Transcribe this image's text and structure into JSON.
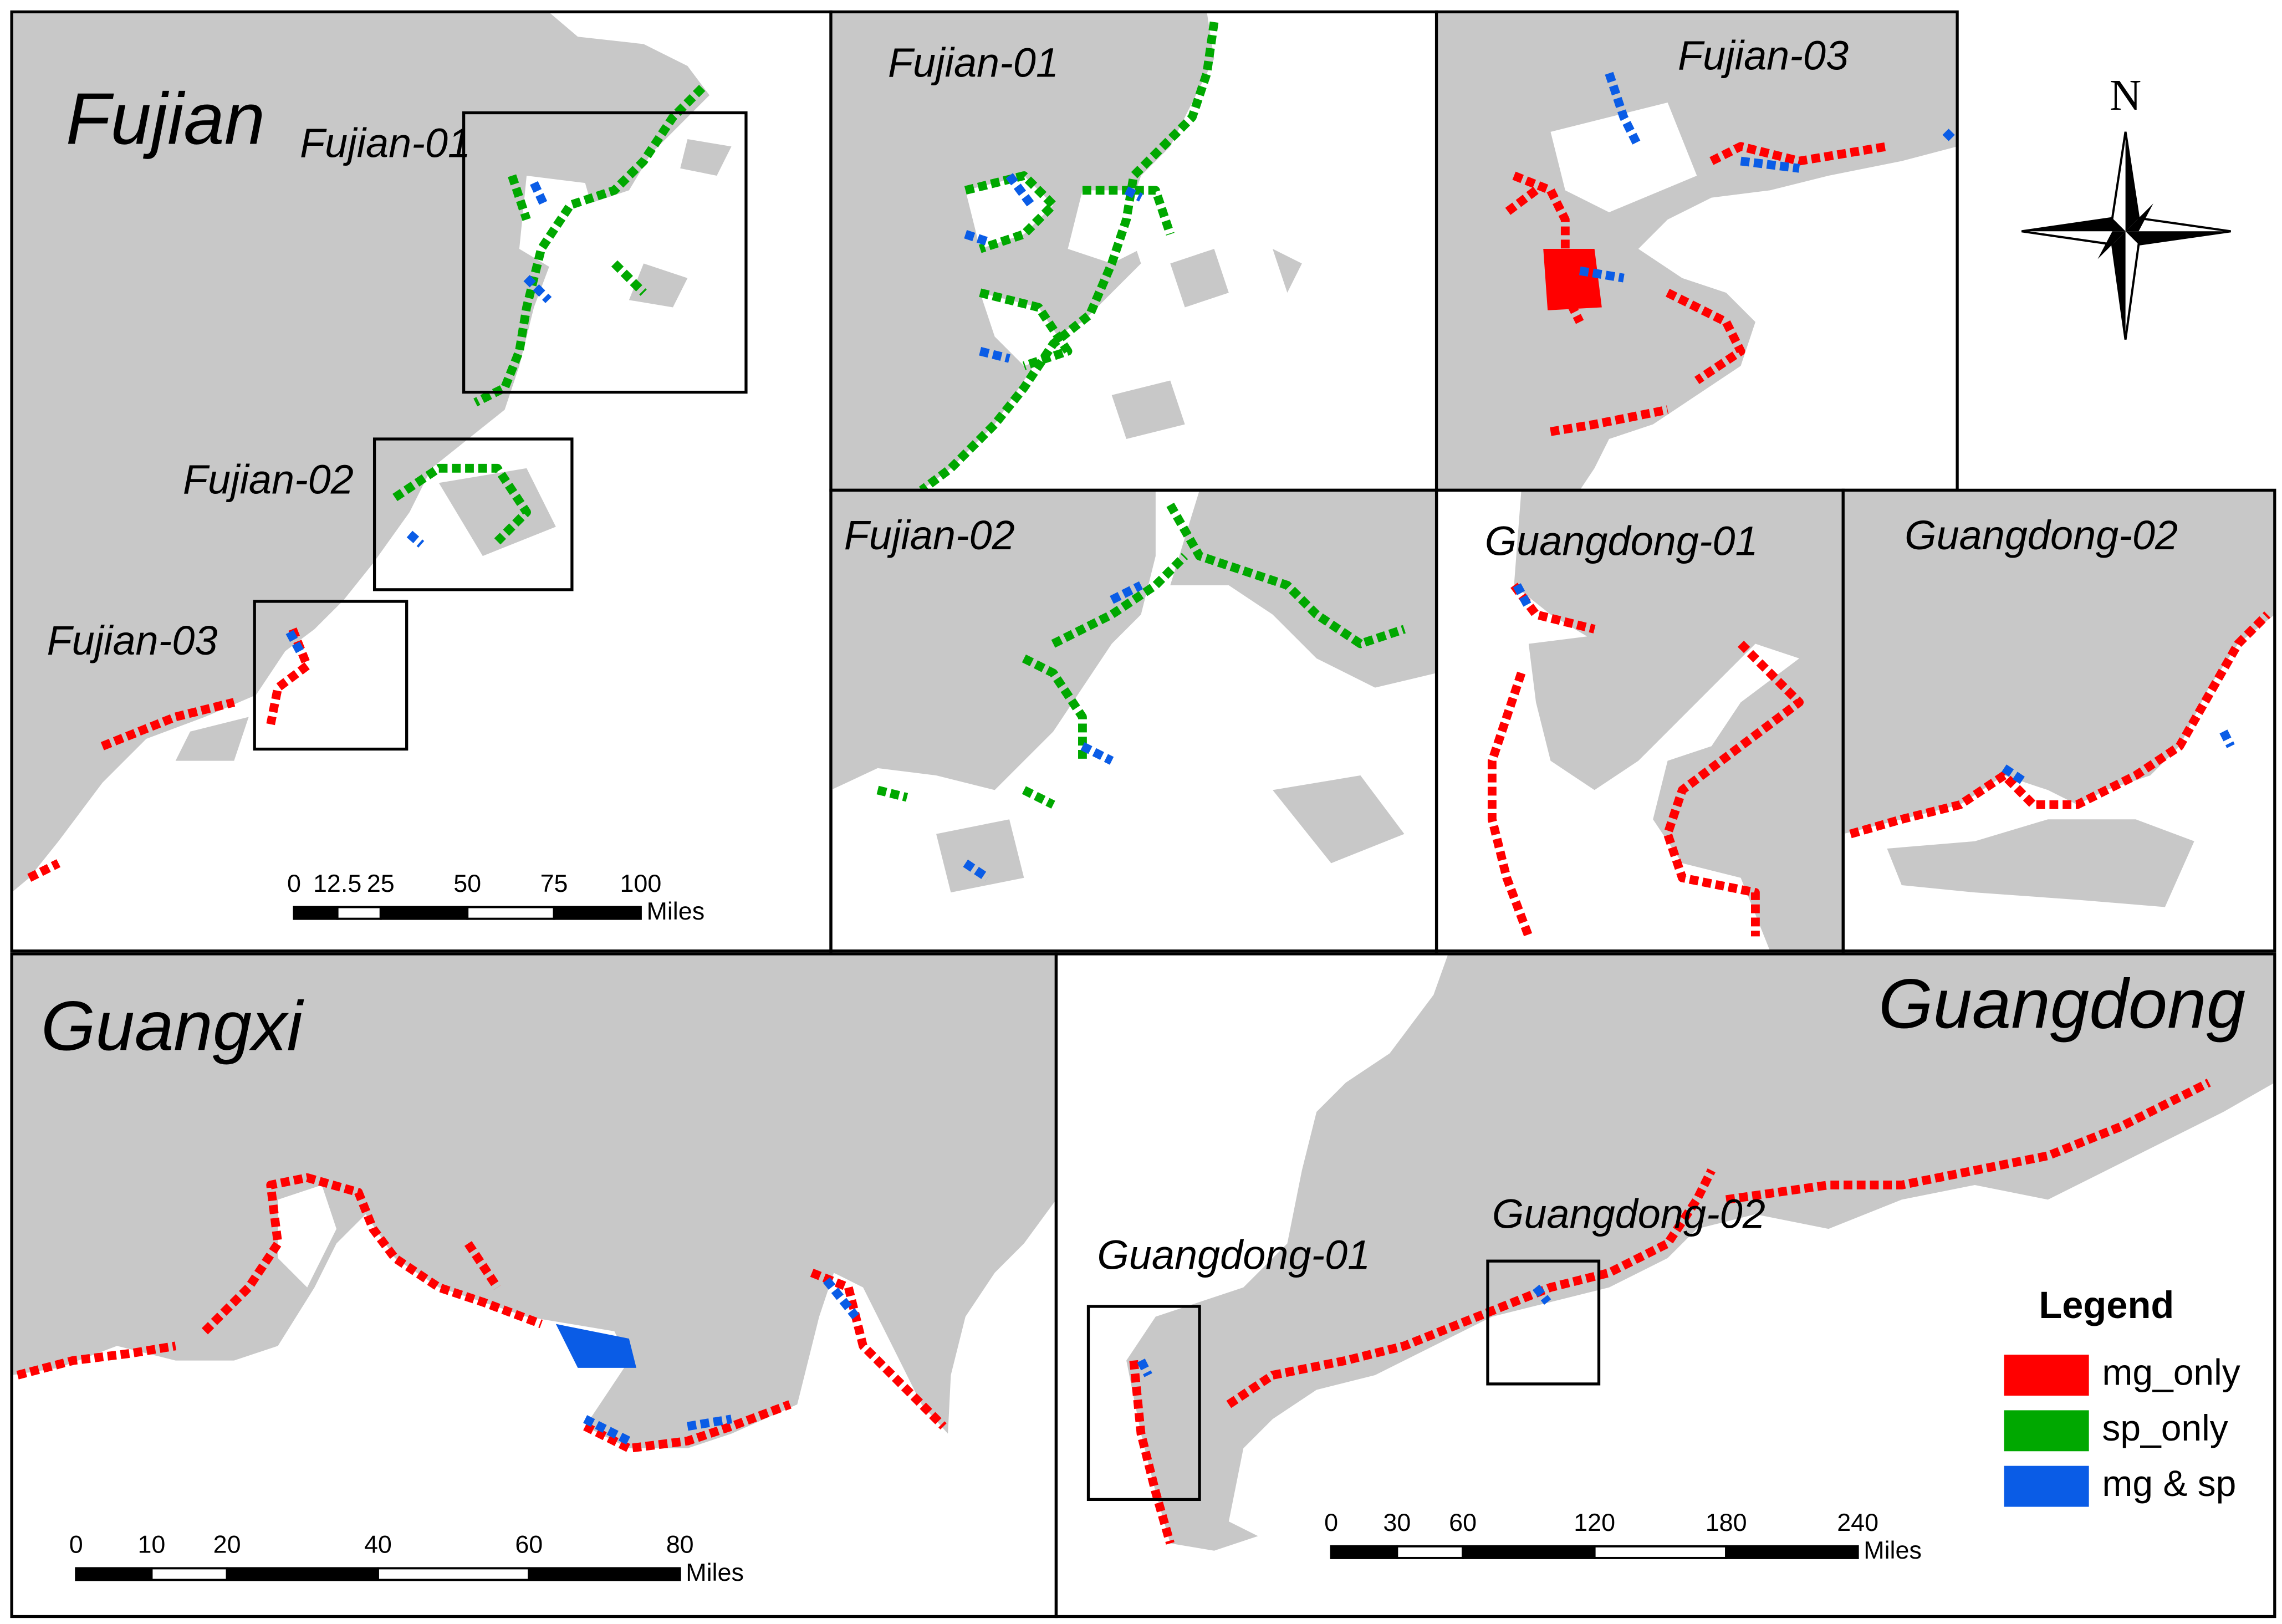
{
  "panels": {
    "fujian": {
      "title": "Fujian",
      "insets": [
        "Fujian-01",
        "Fujian-02",
        "Fujian-03"
      ],
      "scale": {
        "ticks": [
          0,
          12.5,
          25,
          50,
          75,
          100
        ],
        "unit": "Miles"
      }
    },
    "fujian_01": {
      "title": "Fujian-01"
    },
    "fujian_02": {
      "title": "Fujian-02"
    },
    "fujian_03": {
      "title": "Fujian-03"
    },
    "guangdong_01": {
      "title": "Guangdong-01"
    },
    "guangdong_02": {
      "title": "Guangdong-02"
    },
    "guangxi": {
      "title": "Guangxi",
      "scale": {
        "ticks": [
          0,
          10,
          20,
          40,
          60,
          80
        ],
        "unit": "Miles"
      }
    },
    "guangdong": {
      "title": "Guangdong",
      "insets": [
        "Guangdong-01",
        "Guangdong-02"
      ],
      "scale": {
        "ticks": [
          0,
          30,
          60,
          120,
          180,
          240
        ],
        "unit": "Miles"
      }
    }
  },
  "north_arrow": "N",
  "legend": {
    "title": "Legend",
    "items": [
      {
        "label": "mg_only",
        "color": "#ff0000"
      },
      {
        "label": "sp_only",
        "color": "#00a800"
      },
      {
        "label": "mg & sp",
        "color": "#0a5ce6"
      }
    ]
  }
}
